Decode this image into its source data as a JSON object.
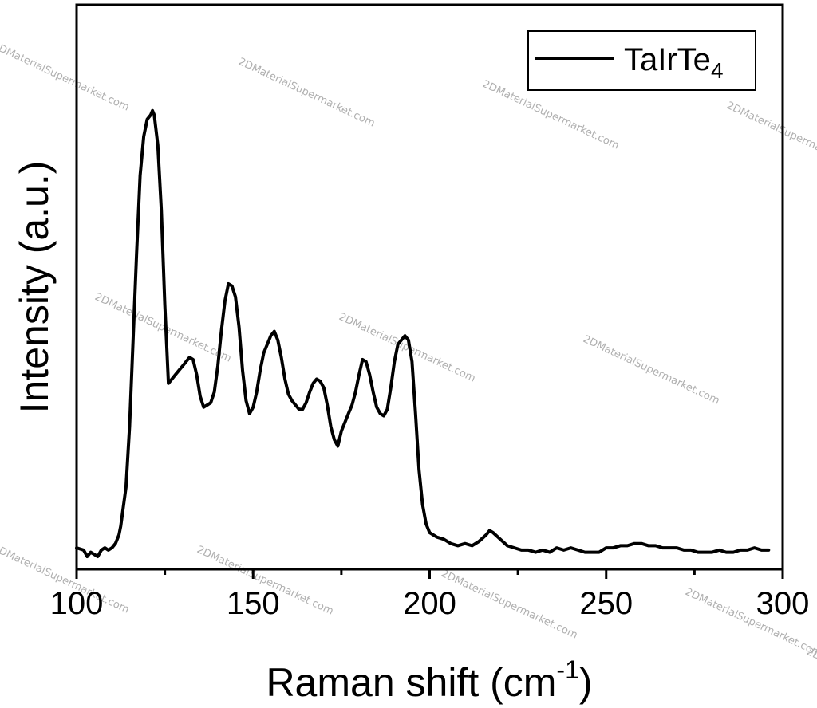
{
  "chart_data": {
    "type": "line",
    "xlabel": "Raman shift (cm",
    "xlabel_sup": "-1",
    "xlabel_end": ")",
    "ylabel": "Intensity (a.u.)",
    "xlim": [
      100,
      300
    ],
    "ylim": [
      0,
      1
    ],
    "xticks": [
      "100",
      "150",
      "200",
      "250",
      "300"
    ],
    "xtick_values": [
      100,
      150,
      200,
      250,
      300
    ],
    "legend_position": "top-right",
    "grid": false,
    "series": [
      {
        "name": "TaIrTe",
        "name_sub": "4",
        "color": "#000000",
        "x": [
          100,
          102,
          103,
          104,
          105,
          106,
          107,
          108,
          109,
          110,
          111,
          112,
          112.5,
          113,
          114,
          115,
          116,
          117,
          118,
          119,
          120,
          121,
          121.5,
          122,
          123,
          124,
          125,
          126,
          127,
          128,
          129,
          130,
          131,
          132,
          133,
          134,
          135,
          136,
          137,
          138,
          139,
          140,
          141,
          142,
          143,
          144,
          145,
          146,
          147,
          148,
          149,
          150,
          151,
          152,
          153,
          154,
          155,
          156,
          157,
          158,
          159,
          160,
          161,
          162,
          163,
          164,
          165,
          166,
          167,
          168,
          169,
          170,
          171,
          172,
          173,
          174,
          175,
          176,
          177,
          178,
          179,
          180,
          181,
          182,
          183,
          184,
          185,
          186,
          187,
          188,
          189,
          190,
          191,
          192,
          193,
          194,
          195,
          196,
          197,
          198,
          199,
          200,
          202,
          204,
          206,
          208,
          210,
          212,
          214,
          216,
          217,
          218,
          220,
          222,
          224,
          226,
          228,
          230,
          232,
          234,
          236,
          238,
          240,
          242,
          244,
          246,
          248,
          250,
          252,
          254,
          256,
          258,
          260,
          262,
          264,
          266,
          268,
          270,
          272,
          274,
          276,
          278,
          280,
          282,
          284,
          286,
          288,
          290,
          292,
          294,
          296
        ],
        "y": [
          0.02,
          0.015,
          0.0,
          0.01,
          0.005,
          0.0,
          0.015,
          0.02,
          0.015,
          0.02,
          0.03,
          0.05,
          0.07,
          0.1,
          0.16,
          0.3,
          0.5,
          0.7,
          0.88,
          0.97,
          1.01,
          1.02,
          1.03,
          1.02,
          0.95,
          0.8,
          0.58,
          0.4,
          0.41,
          0.42,
          0.43,
          0.44,
          0.45,
          0.46,
          0.455,
          0.42,
          0.37,
          0.345,
          0.35,
          0.355,
          0.38,
          0.44,
          0.52,
          0.59,
          0.63,
          0.625,
          0.6,
          0.53,
          0.43,
          0.36,
          0.33,
          0.345,
          0.38,
          0.43,
          0.47,
          0.49,
          0.51,
          0.52,
          0.5,
          0.46,
          0.41,
          0.375,
          0.36,
          0.35,
          0.34,
          0.34,
          0.355,
          0.38,
          0.4,
          0.41,
          0.405,
          0.39,
          0.35,
          0.3,
          0.27,
          0.255,
          0.29,
          0.31,
          0.33,
          0.35,
          0.38,
          0.42,
          0.455,
          0.45,
          0.42,
          0.38,
          0.345,
          0.33,
          0.325,
          0.34,
          0.39,
          0.45,
          0.49,
          0.5,
          0.51,
          0.5,
          0.45,
          0.33,
          0.2,
          0.12,
          0.075,
          0.055,
          0.045,
          0.04,
          0.03,
          0.025,
          0.03,
          0.025,
          0.035,
          0.05,
          0.06,
          0.055,
          0.04,
          0.025,
          0.02,
          0.015,
          0.015,
          0.01,
          0.015,
          0.01,
          0.02,
          0.015,
          0.02,
          0.015,
          0.01,
          0.01,
          0.01,
          0.02,
          0.02,
          0.025,
          0.025,
          0.03,
          0.03,
          0.025,
          0.025,
          0.02,
          0.02,
          0.02,
          0.015,
          0.015,
          0.01,
          0.01,
          0.01,
          0.015,
          0.01,
          0.01,
          0.015,
          0.015,
          0.02,
          0.015,
          0.015
        ]
      }
    ]
  },
  "watermarks": [
    "2DMaterialSupermarket.com",
    "2DMaterialSupermarket.com",
    "2DMaterialSupermarket.com",
    "2DMaterialSupermarket.com",
    "2DMaterialSupermarket.com",
    "2DMaterialSupermarket.com",
    "2DMaterialSupermarket.com",
    "2DMaterialSupermarket.com",
    "2DMaterialSupermarket.com",
    "2DMaterialSupermarket.com",
    "2DMaterialSupermarket.com",
    "2DMaterialSupermarket.com"
  ]
}
